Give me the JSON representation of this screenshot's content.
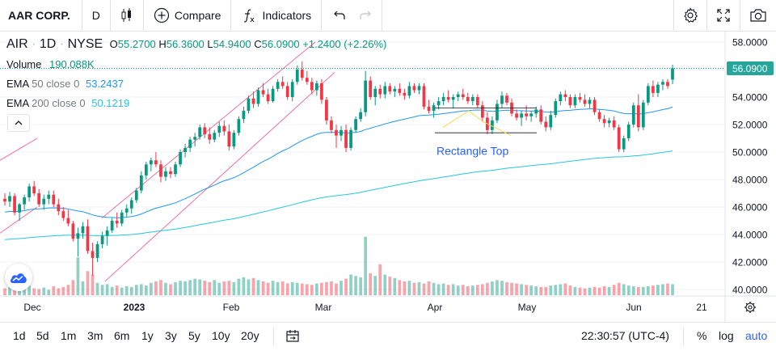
{
  "toolbar": {
    "symbol": "AAR CORP.",
    "interval": "D",
    "compare_label": "Compare",
    "indicators_label": "Indicators"
  },
  "legend": {
    "symbol": "AIR",
    "interval": "1D",
    "exchange": "NYSE",
    "open_label": "O",
    "open": "55.2700",
    "high_label": "H",
    "high": "56.3600",
    "low_label": "L",
    "low": "54.9400",
    "close_label": "C",
    "close": "56.0900",
    "change": "+1.2400 (+2.26%)",
    "volume_label": "Volume",
    "volume": "190.088K",
    "ema50_label": "EMA",
    "ema50_params": "50 close 0",
    "ema50_value": "53.2437",
    "ema200_label": "EMA",
    "ema200_params": "200 close 0",
    "ema200_value": "50.1219"
  },
  "bottombar": {
    "ranges": [
      "1d",
      "5d",
      "1m",
      "3m",
      "6m",
      "1y",
      "3y",
      "5y",
      "10y",
      "20y"
    ],
    "time": "22:30:57 (UTC-4)",
    "percent_label": "%",
    "log_label": "log",
    "auto_label": "auto"
  },
  "colors": {
    "up": "#089981",
    "down": "#f23645",
    "ema50": "#2196f3",
    "ema200": "#26c6da",
    "channel": "#f06292",
    "pattern": "#2962ff",
    "last_price_bg": "#26a69a"
  },
  "chart_data": {
    "type": "candlestick",
    "y_axis_ticks": [
      "58.0000",
      "56.0000",
      "54.0000",
      "52.0000",
      "50.0000",
      "48.0000",
      "46.0000",
      "44.0000",
      "42.0000",
      "40.0000"
    ],
    "ylim": [
      40,
      58
    ],
    "x_axis_labels": [
      "Dec",
      "2023",
      "Feb",
      "Mar",
      "Apr",
      "May",
      "Jun",
      "21"
    ],
    "last_price": "56.0900",
    "pattern_label": "Rectangle Top",
    "rectangle_top": {
      "upper": 53.2,
      "lower": 51.4,
      "start": "Apr",
      "end": "May"
    },
    "candles": [
      {
        "o": 46.6,
        "h": 47.0,
        "l": 46.1,
        "c": 46.4
      },
      {
        "o": 46.4,
        "h": 47.1,
        "l": 46.0,
        "c": 46.8
      },
      {
        "o": 46.8,
        "h": 47.0,
        "l": 45.4,
        "c": 45.6
      },
      {
        "o": 45.6,
        "h": 46.3,
        "l": 45.0,
        "c": 46.2
      },
      {
        "o": 46.2,
        "h": 46.9,
        "l": 45.8,
        "c": 46.7
      },
      {
        "o": 46.7,
        "h": 47.7,
        "l": 46.4,
        "c": 47.5
      },
      {
        "o": 47.5,
        "h": 47.9,
        "l": 46.8,
        "c": 47.0
      },
      {
        "o": 47.0,
        "h": 47.3,
        "l": 46.0,
        "c": 46.2
      },
      {
        "o": 46.2,
        "h": 46.9,
        "l": 45.8,
        "c": 46.6
      },
      {
        "o": 46.6,
        "h": 47.2,
        "l": 46.2,
        "c": 46.9
      },
      {
        "o": 46.9,
        "h": 47.2,
        "l": 46.0,
        "c": 46.2
      },
      {
        "o": 46.2,
        "h": 46.6,
        "l": 45.4,
        "c": 45.7
      },
      {
        "o": 45.7,
        "h": 46.0,
        "l": 45.0,
        "c": 45.2
      },
      {
        "o": 45.2,
        "h": 45.8,
        "l": 44.6,
        "c": 44.8
      },
      {
        "o": 44.8,
        "h": 45.0,
        "l": 43.5,
        "c": 43.7
      },
      {
        "o": 43.7,
        "h": 44.5,
        "l": 42.4,
        "c": 44.1
      },
      {
        "o": 44.1,
        "h": 44.9,
        "l": 43.7,
        "c": 44.6
      },
      {
        "o": 44.6,
        "h": 45.1,
        "l": 42.6,
        "c": 42.8
      },
      {
        "o": 42.8,
        "h": 43.4,
        "l": 41.0,
        "c": 42.3
      },
      {
        "o": 42.3,
        "h": 43.5,
        "l": 42.0,
        "c": 43.3
      },
      {
        "o": 43.3,
        "h": 44.2,
        "l": 43.0,
        "c": 43.9
      },
      {
        "o": 43.9,
        "h": 44.6,
        "l": 43.2,
        "c": 44.3
      },
      {
        "o": 44.3,
        "h": 45.2,
        "l": 44.1,
        "c": 45.0
      },
      {
        "o": 45.0,
        "h": 45.6,
        "l": 44.5,
        "c": 44.8
      },
      {
        "o": 44.8,
        "h": 45.8,
        "l": 44.6,
        "c": 45.6
      },
      {
        "o": 45.6,
        "h": 46.2,
        "l": 45.3,
        "c": 45.9
      },
      {
        "o": 45.9,
        "h": 46.7,
        "l": 45.5,
        "c": 46.5
      },
      {
        "o": 46.5,
        "h": 47.4,
        "l": 46.3,
        "c": 47.2
      },
      {
        "o": 47.2,
        "h": 48.6,
        "l": 47.0,
        "c": 48.3
      },
      {
        "o": 48.3,
        "h": 49.3,
        "l": 48.0,
        "c": 49.1
      },
      {
        "o": 49.1,
        "h": 49.6,
        "l": 48.6,
        "c": 49.4
      },
      {
        "o": 49.4,
        "h": 50.0,
        "l": 48.9,
        "c": 49.1
      },
      {
        "o": 49.1,
        "h": 49.4,
        "l": 47.8,
        "c": 48.2
      },
      {
        "o": 48.2,
        "h": 48.9,
        "l": 47.9,
        "c": 48.6
      },
      {
        "o": 48.6,
        "h": 48.9,
        "l": 48.1,
        "c": 48.4
      },
      {
        "o": 48.4,
        "h": 49.3,
        "l": 48.2,
        "c": 49.1
      },
      {
        "o": 49.1,
        "h": 50.2,
        "l": 48.9,
        "c": 50.0
      },
      {
        "o": 50.0,
        "h": 50.6,
        "l": 49.6,
        "c": 50.3
      },
      {
        "o": 50.3,
        "h": 51.1,
        "l": 50.0,
        "c": 50.9
      },
      {
        "o": 50.9,
        "h": 51.4,
        "l": 50.4,
        "c": 51.1
      },
      {
        "o": 51.1,
        "h": 52.0,
        "l": 50.9,
        "c": 51.8
      },
      {
        "o": 51.8,
        "h": 52.1,
        "l": 51.0,
        "c": 51.3
      },
      {
        "o": 51.3,
        "h": 51.8,
        "l": 50.6,
        "c": 50.9
      },
      {
        "o": 50.9,
        "h": 51.6,
        "l": 50.7,
        "c": 51.4
      },
      {
        "o": 51.4,
        "h": 52.2,
        "l": 51.1,
        "c": 51.9
      },
      {
        "o": 51.9,
        "h": 52.3,
        "l": 51.2,
        "c": 51.5
      },
      {
        "o": 51.5,
        "h": 52.0,
        "l": 50.1,
        "c": 50.4
      },
      {
        "o": 50.4,
        "h": 51.6,
        "l": 50.2,
        "c": 51.4
      },
      {
        "o": 51.4,
        "h": 52.6,
        "l": 51.2,
        "c": 52.4
      },
      {
        "o": 52.4,
        "h": 53.3,
        "l": 52.1,
        "c": 53.0
      },
      {
        "o": 53.0,
        "h": 54.1,
        "l": 52.8,
        "c": 53.9
      },
      {
        "o": 53.9,
        "h": 54.4,
        "l": 53.2,
        "c": 53.5
      },
      {
        "o": 53.5,
        "h": 54.7,
        "l": 53.3,
        "c": 54.5
      },
      {
        "o": 54.5,
        "h": 55.0,
        "l": 54.0,
        "c": 54.2
      },
      {
        "o": 54.2,
        "h": 54.6,
        "l": 53.5,
        "c": 53.7
      },
      {
        "o": 53.7,
        "h": 54.8,
        "l": 53.6,
        "c": 54.6
      },
      {
        "o": 54.6,
        "h": 55.3,
        "l": 54.4,
        "c": 55.1
      },
      {
        "o": 55.1,
        "h": 55.5,
        "l": 54.6,
        "c": 54.8
      },
      {
        "o": 54.8,
        "h": 55.1,
        "l": 53.8,
        "c": 54.0
      },
      {
        "o": 54.0,
        "h": 55.3,
        "l": 53.7,
        "c": 55.1
      },
      {
        "o": 55.1,
        "h": 56.3,
        "l": 54.9,
        "c": 56.0
      },
      {
        "o": 56.0,
        "h": 56.6,
        "l": 55.2,
        "c": 55.4
      },
      {
        "o": 55.4,
        "h": 55.9,
        "l": 54.9,
        "c": 55.1
      },
      {
        "o": 55.1,
        "h": 55.4,
        "l": 54.2,
        "c": 54.5
      },
      {
        "o": 54.5,
        "h": 55.2,
        "l": 54.1,
        "c": 55.0
      },
      {
        "o": 55.0,
        "h": 55.3,
        "l": 53.5,
        "c": 53.8
      },
      {
        "o": 53.8,
        "h": 54.0,
        "l": 52.0,
        "c": 52.3
      },
      {
        "o": 52.3,
        "h": 52.6,
        "l": 51.4,
        "c": 51.6
      },
      {
        "o": 51.6,
        "h": 52.0,
        "l": 50.3,
        "c": 51.2
      },
      {
        "o": 51.2,
        "h": 51.9,
        "l": 50.8,
        "c": 51.6
      },
      {
        "o": 51.6,
        "h": 52.0,
        "l": 50.0,
        "c": 50.3
      },
      {
        "o": 50.3,
        "h": 51.8,
        "l": 50.1,
        "c": 51.6
      },
      {
        "o": 51.6,
        "h": 52.6,
        "l": 51.4,
        "c": 52.4
      },
      {
        "o": 52.4,
        "h": 53.2,
        "l": 52.2,
        "c": 52.9
      },
      {
        "o": 52.9,
        "h": 55.9,
        "l": 52.6,
        "c": 55.2
      },
      {
        "o": 55.2,
        "h": 55.5,
        "l": 53.8,
        "c": 54.0
      },
      {
        "o": 54.0,
        "h": 54.8,
        "l": 53.4,
        "c": 54.6
      },
      {
        "o": 54.6,
        "h": 54.9,
        "l": 53.9,
        "c": 54.2
      },
      {
        "o": 54.2,
        "h": 55.1,
        "l": 53.9,
        "c": 54.8
      },
      {
        "o": 54.8,
        "h": 55.0,
        "l": 54.2,
        "c": 54.4
      },
      {
        "o": 54.4,
        "h": 54.8,
        "l": 54.0,
        "c": 54.6
      },
      {
        "o": 54.6,
        "h": 55.0,
        "l": 54.1,
        "c": 54.3
      },
      {
        "o": 54.3,
        "h": 54.6,
        "l": 53.8,
        "c": 54.1
      },
      {
        "o": 54.1,
        "h": 55.1,
        "l": 53.9,
        "c": 54.8
      },
      {
        "o": 54.8,
        "h": 55.0,
        "l": 54.3,
        "c": 54.5
      },
      {
        "o": 54.5,
        "h": 55.0,
        "l": 54.2,
        "c": 54.8
      },
      {
        "o": 54.8,
        "h": 55.0,
        "l": 53.1,
        "c": 53.3
      },
      {
        "o": 53.3,
        "h": 53.8,
        "l": 52.8,
        "c": 53.0
      },
      {
        "o": 53.0,
        "h": 53.6,
        "l": 52.5,
        "c": 53.4
      },
      {
        "o": 53.4,
        "h": 54.0,
        "l": 53.1,
        "c": 53.7
      },
      {
        "o": 53.7,
        "h": 54.3,
        "l": 53.4,
        "c": 54.0
      },
      {
        "o": 54.0,
        "h": 54.5,
        "l": 53.6,
        "c": 53.8
      },
      {
        "o": 53.8,
        "h": 54.2,
        "l": 53.2,
        "c": 54.0
      },
      {
        "o": 54.0,
        "h": 54.4,
        "l": 53.7,
        "c": 54.2
      },
      {
        "o": 54.2,
        "h": 54.6,
        "l": 53.8,
        "c": 54.0
      },
      {
        "o": 54.0,
        "h": 54.3,
        "l": 53.5,
        "c": 53.7
      },
      {
        "o": 53.7,
        "h": 54.2,
        "l": 53.4,
        "c": 54.0
      },
      {
        "o": 54.0,
        "h": 54.2,
        "l": 53.2,
        "c": 53.4
      },
      {
        "o": 53.4,
        "h": 53.7,
        "l": 52.2,
        "c": 52.5
      },
      {
        "o": 52.5,
        "h": 52.9,
        "l": 51.3,
        "c": 51.6
      },
      {
        "o": 51.6,
        "h": 52.6,
        "l": 51.3,
        "c": 52.3
      },
      {
        "o": 52.3,
        "h": 53.8,
        "l": 52.1,
        "c": 53.5
      },
      {
        "o": 53.5,
        "h": 54.4,
        "l": 53.2,
        "c": 54.1
      },
      {
        "o": 54.1,
        "h": 54.3,
        "l": 53.4,
        "c": 53.6
      },
      {
        "o": 53.6,
        "h": 53.9,
        "l": 52.6,
        "c": 52.8
      },
      {
        "o": 52.8,
        "h": 53.1,
        "l": 52.3,
        "c": 52.5
      },
      {
        "o": 52.5,
        "h": 53.0,
        "l": 51.9,
        "c": 52.8
      },
      {
        "o": 52.8,
        "h": 53.4,
        "l": 52.3,
        "c": 52.6
      },
      {
        "o": 52.6,
        "h": 53.0,
        "l": 52.2,
        "c": 52.8
      },
      {
        "o": 52.8,
        "h": 53.3,
        "l": 52.5,
        "c": 53.1
      },
      {
        "o": 53.1,
        "h": 53.4,
        "l": 52.0,
        "c": 52.2
      },
      {
        "o": 52.2,
        "h": 52.6,
        "l": 51.5,
        "c": 51.8
      },
      {
        "o": 51.8,
        "h": 53.0,
        "l": 51.6,
        "c": 52.7
      },
      {
        "o": 52.7,
        "h": 53.9,
        "l": 52.5,
        "c": 53.7
      },
      {
        "o": 53.7,
        "h": 54.4,
        "l": 53.4,
        "c": 54.2
      },
      {
        "o": 54.2,
        "h": 54.5,
        "l": 53.7,
        "c": 54.0
      },
      {
        "o": 54.0,
        "h": 54.2,
        "l": 53.2,
        "c": 53.4
      },
      {
        "o": 53.4,
        "h": 54.2,
        "l": 53.2,
        "c": 54.0
      },
      {
        "o": 54.0,
        "h": 54.3,
        "l": 53.6,
        "c": 53.8
      },
      {
        "o": 53.8,
        "h": 54.2,
        "l": 53.3,
        "c": 53.5
      },
      {
        "o": 53.5,
        "h": 54.0,
        "l": 53.2,
        "c": 53.8
      },
      {
        "o": 53.8,
        "h": 54.0,
        "l": 52.7,
        "c": 52.9
      },
      {
        "o": 52.9,
        "h": 53.1,
        "l": 52.2,
        "c": 52.4
      },
      {
        "o": 52.4,
        "h": 52.7,
        "l": 51.8,
        "c": 52.1
      },
      {
        "o": 52.1,
        "h": 52.5,
        "l": 51.8,
        "c": 52.3
      },
      {
        "o": 52.3,
        "h": 52.6,
        "l": 51.6,
        "c": 51.8
      },
      {
        "o": 51.8,
        "h": 52.0,
        "l": 50.0,
        "c": 50.2
      },
      {
        "o": 50.2,
        "h": 51.2,
        "l": 50.0,
        "c": 51.0
      },
      {
        "o": 51.0,
        "h": 52.2,
        "l": 50.8,
        "c": 52.0
      },
      {
        "o": 52.0,
        "h": 53.6,
        "l": 51.8,
        "c": 53.4
      },
      {
        "o": 53.4,
        "h": 54.2,
        "l": 51.5,
        "c": 51.8
      },
      {
        "o": 51.8,
        "h": 53.8,
        "l": 51.6,
        "c": 53.6
      },
      {
        "o": 53.6,
        "h": 55.0,
        "l": 53.4,
        "c": 54.8
      },
      {
        "o": 54.8,
        "h": 55.2,
        "l": 54.0,
        "c": 54.3
      },
      {
        "o": 54.3,
        "h": 55.1,
        "l": 54.0,
        "c": 54.9
      },
      {
        "o": 54.9,
        "h": 55.3,
        "l": 54.5,
        "c": 55.1
      },
      {
        "o": 55.1,
        "h": 55.3,
        "l": 54.6,
        "c": 54.8
      },
      {
        "o": 55.27,
        "h": 56.36,
        "l": 54.94,
        "c": 56.09
      }
    ],
    "volume_relative": [
      0.1,
      0.12,
      0.08,
      0.11,
      0.09,
      0.14,
      0.1,
      0.09,
      0.11,
      0.08,
      0.13,
      0.1,
      0.12,
      0.15,
      0.22,
      0.55,
      0.2,
      0.35,
      0.3,
      0.18,
      0.15,
      0.16,
      0.12,
      0.14,
      0.11,
      0.13,
      0.12,
      0.15,
      0.16,
      0.14,
      0.18,
      0.2,
      0.22,
      0.18,
      0.16,
      0.19,
      0.21,
      0.2,
      0.22,
      0.24,
      0.23,
      0.21,
      0.19,
      0.22,
      0.18,
      0.2,
      0.21,
      0.19,
      0.24,
      0.26,
      0.23,
      0.25,
      0.22,
      0.2,
      0.18,
      0.21,
      0.19,
      0.2,
      0.17,
      0.19,
      0.18,
      0.17,
      0.16,
      0.15,
      0.17,
      0.18,
      0.19,
      0.2,
      0.17,
      0.21,
      0.24,
      0.3,
      0.28,
      0.26,
      0.85,
      0.32,
      0.28,
      0.45,
      0.3,
      0.27,
      0.25,
      0.22,
      0.2,
      0.21,
      0.18,
      0.19,
      0.17,
      0.2,
      0.18,
      0.16,
      0.17,
      0.15,
      0.16,
      0.14,
      0.15,
      0.13,
      0.14,
      0.15,
      0.16,
      0.18,
      0.2,
      0.22,
      0.21,
      0.19,
      0.18,
      0.17,
      0.16,
      0.15,
      0.14,
      0.13,
      0.12,
      0.12,
      0.14,
      0.15,
      0.16,
      0.17,
      0.14,
      0.12,
      0.11,
      0.1,
      0.11,
      0.12,
      0.11,
      0.13,
      0.12,
      0.15,
      0.18,
      0.16,
      0.14,
      0.13,
      0.12,
      0.12,
      0.13,
      0.14,
      0.15,
      0.16,
      0.17,
      0.16,
      0.17
    ]
  }
}
